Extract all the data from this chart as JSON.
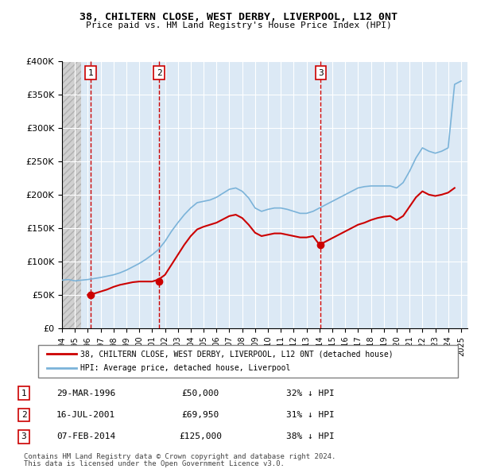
{
  "title": "38, CHILTERN CLOSE, WEST DERBY, LIVERPOOL, L12 0NT",
  "subtitle": "Price paid vs. HM Land Registry's House Price Index (HPI)",
  "legend_line1": "38, CHILTERN CLOSE, WEST DERBY, LIVERPOOL, L12 0NT (detached house)",
  "legend_line2": "HPI: Average price, detached house, Liverpool",
  "footer1": "Contains HM Land Registry data © Crown copyright and database right 2024.",
  "footer2": "This data is licensed under the Open Government Licence v3.0.",
  "transactions": [
    {
      "num": 1,
      "date": "29-MAR-1996",
      "price": 50000,
      "pct": "32% ↓ HPI",
      "year": 1996.23
    },
    {
      "num": 2,
      "date": "16-JUL-2001",
      "price": 69950,
      "pct": "31% ↓ HPI",
      "year": 2001.54
    },
    {
      "num": 3,
      "date": "07-FEB-2014",
      "price": 125000,
      "pct": "38% ↓ HPI",
      "year": 2014.1
    }
  ],
  "hpi_color": "#7bb3d9",
  "price_color": "#cc0000",
  "dashed_line_color": "#cc0000",
  "background_hatch_color": "#e8e8e8",
  "plot_bg_color": "#dce9f5",
  "grid_color": "#ffffff",
  "ylim": [
    0,
    400000
  ],
  "xlim_start": 1994,
  "xlim_end": 2025.5,
  "yticks": [
    0,
    50000,
    100000,
    150000,
    200000,
    250000,
    300000,
    350000,
    400000
  ],
  "xticks": [
    1994,
    1995,
    1996,
    1997,
    1998,
    1999,
    2000,
    2001,
    2002,
    2003,
    2004,
    2005,
    2006,
    2007,
    2008,
    2009,
    2010,
    2011,
    2012,
    2013,
    2014,
    2015,
    2016,
    2017,
    2018,
    2019,
    2020,
    2021,
    2022,
    2023,
    2024,
    2025
  ],
  "hpi_data": {
    "years": [
      1994.0,
      1994.5,
      1995.0,
      1995.5,
      1996.0,
      1996.5,
      1997.0,
      1997.5,
      1998.0,
      1998.5,
      1999.0,
      1999.5,
      2000.0,
      2000.5,
      2001.0,
      2001.5,
      2002.0,
      2002.5,
      2003.0,
      2003.5,
      2004.0,
      2004.5,
      2005.0,
      2005.5,
      2006.0,
      2006.5,
      2007.0,
      2007.5,
      2008.0,
      2008.5,
      2009.0,
      2009.5,
      2010.0,
      2010.5,
      2011.0,
      2011.5,
      2012.0,
      2012.5,
      2013.0,
      2013.5,
      2014.0,
      2014.5,
      2015.0,
      2015.5,
      2016.0,
      2016.5,
      2017.0,
      2017.5,
      2018.0,
      2018.5,
      2019.0,
      2019.5,
      2020.0,
      2020.5,
      2021.0,
      2021.5,
      2022.0,
      2022.5,
      2023.0,
      2023.5,
      2024.0,
      2024.5,
      2025.0
    ],
    "values": [
      72000,
      73000,
      71000,
      72000,
      73000,
      74500,
      76000,
      78000,
      80000,
      83000,
      87000,
      92000,
      97000,
      103000,
      110000,
      118000,
      130000,
      145000,
      158000,
      170000,
      180000,
      188000,
      190000,
      192000,
      196000,
      202000,
      208000,
      210000,
      205000,
      195000,
      180000,
      175000,
      178000,
      180000,
      180000,
      178000,
      175000,
      172000,
      172000,
      175000,
      180000,
      185000,
      190000,
      195000,
      200000,
      205000,
      210000,
      212000,
      213000,
      213000,
      213000,
      213000,
      210000,
      218000,
      235000,
      255000,
      270000,
      265000,
      262000,
      265000,
      270000,
      365000,
      370000
    ]
  },
  "price_data": {
    "years": [
      1994.0,
      1994.5,
      1995.0,
      1995.5,
      1996.0,
      1996.5,
      1997.0,
      1997.5,
      1998.0,
      1998.5,
      1999.0,
      1999.5,
      2000.0,
      2000.5,
      2001.0,
      2001.5,
      2002.0,
      2002.5,
      2003.0,
      2003.5,
      2004.0,
      2004.5,
      2005.0,
      2005.5,
      2006.0,
      2006.5,
      2007.0,
      2007.5,
      2008.0,
      2008.5,
      2009.0,
      2009.5,
      2010.0,
      2010.5,
      2011.0,
      2011.5,
      2012.0,
      2012.5,
      2013.0,
      2013.5,
      2014.0,
      2014.5,
      2015.0,
      2015.5,
      2016.0,
      2016.5,
      2017.0,
      2017.5,
      2018.0,
      2018.5,
      2019.0,
      2019.5,
      2020.0,
      2020.5,
      2021.0,
      2021.5,
      2022.0,
      2022.5,
      2023.0,
      2023.5,
      2024.0,
      2024.5
    ],
    "values": [
      null,
      null,
      null,
      null,
      50000,
      52000,
      55000,
      58000,
      62000,
      65000,
      67000,
      69000,
      70000,
      70000,
      69950,
      73000,
      80000,
      95000,
      110000,
      125000,
      138000,
      148000,
      152000,
      155000,
      158000,
      163000,
      168000,
      170000,
      165000,
      155000,
      143000,
      138000,
      140000,
      142000,
      142000,
      140000,
      138000,
      136000,
      136000,
      138000,
      125000,
      130000,
      135000,
      140000,
      145000,
      150000,
      155000,
      158000,
      162000,
      165000,
      167000,
      168000,
      162000,
      168000,
      182000,
      196000,
      205000,
      200000,
      198000,
      200000,
      203000,
      210000
    ]
  }
}
